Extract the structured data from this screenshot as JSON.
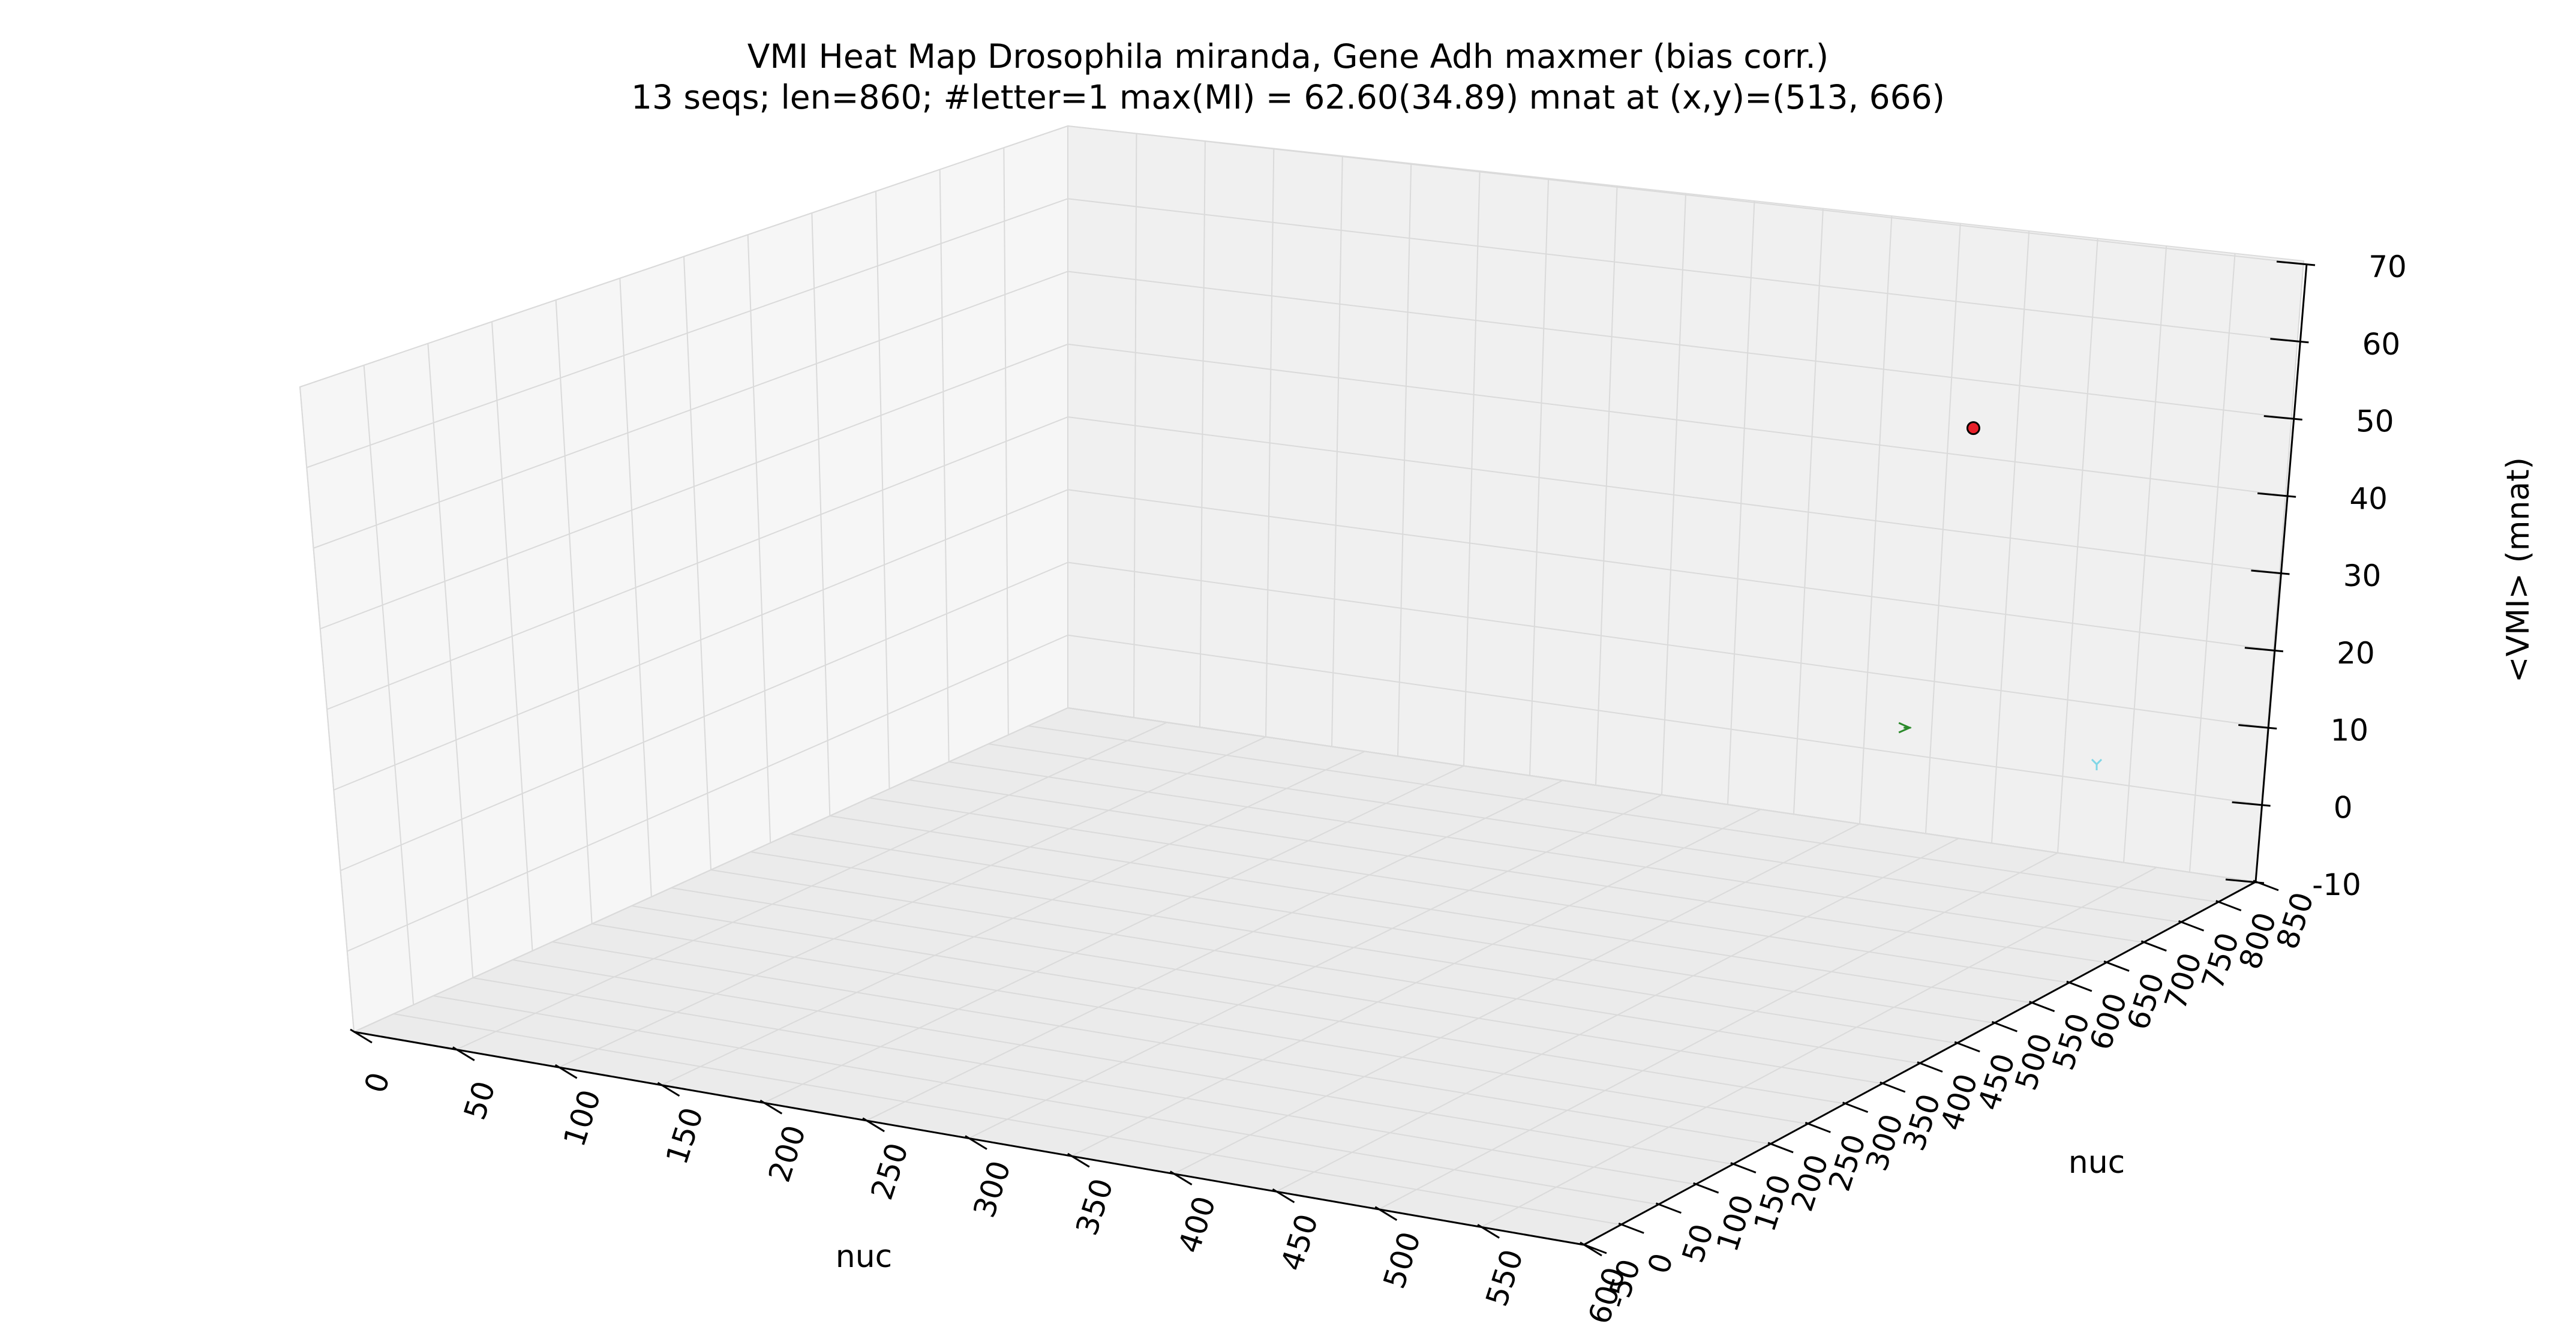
{
  "chart_data": {
    "type": "scatter",
    "projection": "3d",
    "title": "VMI Heat Map Drosophila miranda, Gene Adh maxmer (bias corr.)",
    "subtitle": "13 seqs; len=860; #letter=1 max(MI) = 62.60(34.89) mnat at (x,y)=(513, 666)",
    "xlabel": "nuc",
    "ylabel": "nuc",
    "zlabel": "<VMI> (mnat)",
    "x_ticks": [
      "0",
      "50",
      "100",
      "150",
      "200",
      "250",
      "300",
      "350",
      "400",
      "450",
      "500",
      "550",
      "600"
    ],
    "y_ticks": [
      "-50",
      "0",
      "50",
      "100",
      "150",
      "200",
      "250",
      "300",
      "350",
      "400",
      "450",
      "500",
      "550",
      "600",
      "650",
      "700",
      "750",
      "800",
      "850"
    ],
    "z_ticks": [
      "-10",
      "0",
      "10",
      "20",
      "30",
      "40",
      "50",
      "60",
      "70"
    ],
    "xlim": [
      0,
      600
    ],
    "ylim": [
      -50,
      850
    ],
    "zlim": [
      -10,
      70
    ],
    "grid": true,
    "points": [
      {
        "x": 513,
        "y": 666,
        "z": 62.6,
        "marker": "circle",
        "color": "#e8202a"
      },
      {
        "x": 520,
        "y": 560,
        "z": 27,
        "marker": "tri_right",
        "color": "#2a8a2a"
      },
      {
        "x": 560,
        "y": 700,
        "z": 17,
        "marker": "tri_down",
        "color": "#7fd6e6"
      }
    ]
  }
}
